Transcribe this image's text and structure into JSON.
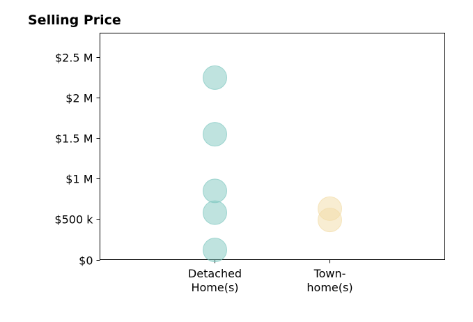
{
  "chart_data": {
    "type": "scatter",
    "title": "Selling Price",
    "xlabel": "",
    "ylabel": "",
    "categories": [
      [
        "Detached",
        "Home(s)"
      ],
      [
        "Town-",
        "home(s)"
      ]
    ],
    "ylim": [
      0,
      2800000
    ],
    "y_ticks": [
      {
        "value": 0,
        "label": "$0"
      },
      {
        "value": 500000,
        "label": "$500 k"
      },
      {
        "value": 1000000,
        "label": "$1 M"
      },
      {
        "value": 1500000,
        "label": "$1.5 M"
      },
      {
        "value": 2000000,
        "label": "$2 M"
      },
      {
        "value": 2500000,
        "label": "$2.5 M"
      }
    ],
    "grid": false,
    "series": [
      {
        "category_index": 0,
        "color": "#7fc8c0",
        "values": [
          2250000,
          1550000,
          850000,
          580000,
          120000
        ]
      },
      {
        "category_index": 1,
        "color": "#f2dba6",
        "values": [
          630000,
          490000
        ]
      }
    ]
  }
}
